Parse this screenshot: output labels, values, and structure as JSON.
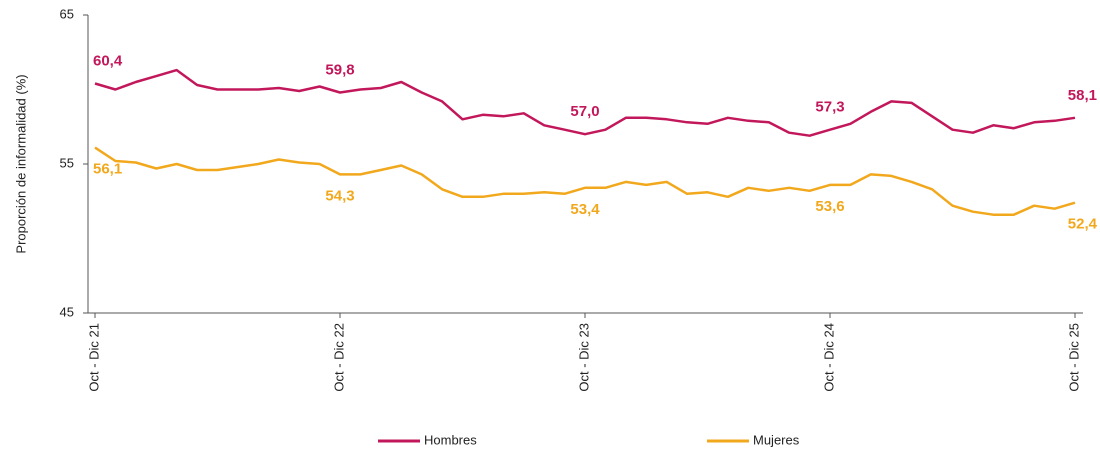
{
  "chart_data": {
    "type": "line",
    "y_label": "Proporción de informalidad (%)",
    "categories": [
      "Oct - Dic 21",
      null,
      null,
      null,
      null,
      null,
      null,
      null,
      null,
      null,
      null,
      null,
      "Oct - Dic 22",
      null,
      null,
      null,
      null,
      null,
      null,
      null,
      null,
      null,
      null,
      null,
      "Oct - Dic 23",
      null,
      null,
      null,
      null,
      null,
      null,
      null,
      null,
      null,
      null,
      null,
      "Oct - Dic 24",
      null,
      null,
      null,
      null,
      null,
      null,
      null,
      null,
      null,
      null,
      null,
      "Oct - Dic 25"
    ],
    "series": [
      {
        "name": "Hombres",
        "color": "#c2185b",
        "values": [
          60.4,
          60.0,
          60.5,
          60.9,
          61.3,
          60.3,
          60.0,
          60.0,
          60.0,
          60.1,
          59.9,
          60.2,
          59.8,
          60.0,
          60.1,
          60.5,
          59.8,
          59.2,
          58.0,
          58.3,
          58.2,
          58.4,
          57.6,
          57.3,
          57.0,
          57.3,
          58.1,
          58.1,
          58.0,
          57.8,
          57.7,
          58.1,
          57.9,
          57.8,
          57.1,
          56.9,
          57.3,
          57.7,
          58.5,
          59.2,
          59.1,
          58.2,
          57.3,
          57.1,
          57.6,
          57.4,
          57.8,
          57.9,
          58.1
        ],
        "value_labels": [
          "60,4",
          null,
          null,
          null,
          null,
          null,
          null,
          null,
          null,
          null,
          null,
          null,
          "59,8",
          null,
          null,
          null,
          null,
          null,
          null,
          null,
          null,
          null,
          null,
          null,
          "57,0",
          null,
          null,
          null,
          null,
          null,
          null,
          null,
          null,
          null,
          null,
          null,
          "57,3",
          null,
          null,
          null,
          null,
          null,
          null,
          null,
          null,
          null,
          null,
          null,
          "58,1"
        ]
      },
      {
        "name": "Mujeres",
        "color": "#f2a81d",
        "values": [
          56.1,
          55.2,
          55.1,
          54.7,
          55.0,
          54.6,
          54.6,
          54.8,
          55.0,
          55.3,
          55.1,
          55.0,
          54.3,
          54.3,
          54.6,
          54.9,
          54.3,
          53.3,
          52.8,
          52.8,
          53.0,
          53.0,
          53.1,
          53.0,
          53.4,
          53.4,
          53.8,
          53.6,
          53.8,
          53.0,
          53.1,
          52.8,
          53.4,
          53.2,
          53.4,
          53.2,
          53.6,
          53.6,
          54.3,
          54.2,
          53.8,
          53.3,
          52.2,
          51.8,
          51.6,
          51.6,
          52.2,
          52.0,
          52.4
        ],
        "value_labels": [
          "56,1",
          null,
          null,
          null,
          null,
          null,
          null,
          null,
          null,
          null,
          null,
          null,
          "54,3",
          null,
          null,
          null,
          null,
          null,
          null,
          null,
          null,
          null,
          null,
          null,
          "53,4",
          null,
          null,
          null,
          null,
          null,
          null,
          null,
          null,
          null,
          null,
          null,
          "53,6",
          null,
          null,
          null,
          null,
          null,
          null,
          null,
          null,
          null,
          null,
          null,
          "52,4"
        ]
      }
    ],
    "ylim": [
      45,
      65
    ],
    "yticks": [
      45,
      55,
      65
    ],
    "grid": false,
    "legend": "bottom"
  }
}
